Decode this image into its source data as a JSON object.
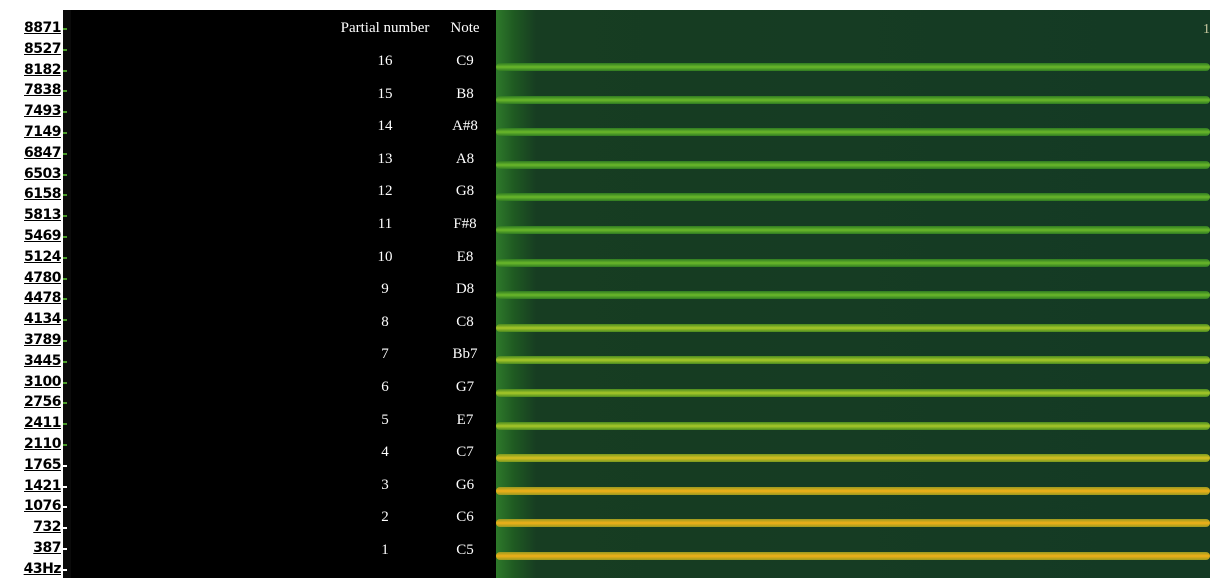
{
  "frequency_labels": [
    "8871",
    "8527",
    "8182",
    "7838",
    "7493",
    "7149",
    "6847",
    "6503",
    "6158",
    "5813",
    "5469",
    "5124",
    "4780",
    "4478",
    "4134",
    "3789",
    "3445",
    "3100",
    "2756",
    "2411",
    "2110",
    "1765",
    "1421",
    "1076",
    "732",
    "387",
    "43Hz"
  ],
  "table": {
    "header": [
      "Partial number",
      "Note"
    ],
    "rows": [
      [
        "16",
        "C9"
      ],
      [
        "15",
        "B8"
      ],
      [
        "14",
        "A#8"
      ],
      [
        "13",
        "A8"
      ],
      [
        "12",
        "G8"
      ],
      [
        "11",
        "F#8"
      ],
      [
        "10",
        "E8"
      ],
      [
        "9",
        "D8"
      ],
      [
        "8",
        "C8"
      ],
      [
        "7",
        "Bb7"
      ],
      [
        "6",
        "G7"
      ],
      [
        "5",
        "E7"
      ],
      [
        "4",
        "C7"
      ],
      [
        "3",
        "G6"
      ],
      [
        "2",
        "C6"
      ],
      [
        "1",
        "C5"
      ]
    ]
  },
  "corner_label": "1"
}
